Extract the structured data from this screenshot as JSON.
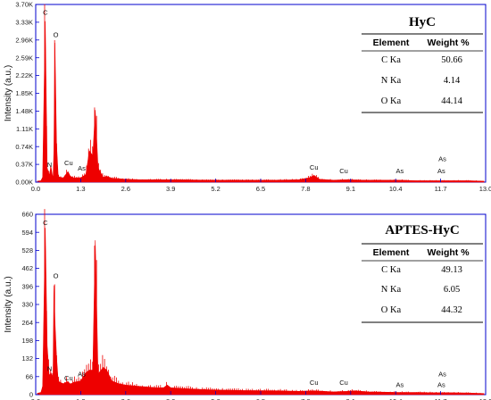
{
  "colors": {
    "spectrum": "#ee0000",
    "frame": "#0000cc",
    "text": "#111111"
  },
  "chart_data": [
    {
      "type": "area",
      "ylabel": "Intensity (a.u.)",
      "xlim": [
        0,
        13
      ],
      "ylim": [
        0,
        3.7
      ],
      "y_unit": "K",
      "xticks": [
        "0.0",
        "1.3",
        "2.6",
        "3.9",
        "5.2",
        "6.5",
        "7.8",
        "9.1",
        "10.4",
        "11.7",
        "13.0"
      ],
      "yticks": [
        "0.00K",
        "0.37K",
        "0.74K",
        "1.11K",
        "1.48K",
        "1.85K",
        "2.22K",
        "2.59K",
        "2.96K",
        "3.33K",
        "3.70K"
      ],
      "x": [
        0.05,
        0.15,
        0.2,
        0.277,
        0.33,
        0.39,
        0.44,
        0.5,
        0.525,
        0.555,
        0.6,
        0.65,
        0.7,
        0.8,
        0.93,
        1.0,
        1.1,
        1.3,
        1.45,
        1.55,
        1.65,
        1.72,
        1.8,
        1.95,
        2.05,
        2.2,
        2.4,
        2.6,
        3.0,
        3.5,
        4.0,
        5.0,
        6.0,
        7.0,
        7.6,
        7.9,
        8.04,
        8.2,
        8.6,
        9.0,
        9.5,
        10.0,
        10.5,
        11.0,
        11.5,
        12.0,
        12.5,
        12.95
      ],
      "y": [
        0.02,
        0.03,
        0.1,
        3.35,
        0.3,
        0.14,
        0.32,
        0.06,
        0.65,
        2.9,
        0.8,
        0.12,
        0.1,
        0.09,
        0.22,
        0.12,
        0.09,
        0.09,
        0.16,
        0.65,
        0.55,
        1.5,
        0.3,
        0.1,
        0.12,
        0.08,
        0.07,
        0.06,
        0.05,
        0.05,
        0.05,
        0.04,
        0.04,
        0.04,
        0.05,
        0.09,
        0.14,
        0.06,
        0.04,
        0.05,
        0.04,
        0.04,
        0.04,
        0.03,
        0.03,
        0.03,
        0.03,
        0.02
      ],
      "peaks": [
        {
          "label": "C",
          "x": 0.28,
          "y": 3.45
        },
        {
          "label": "O",
          "x": 0.58,
          "y": 2.98
        },
        {
          "label": "N",
          "x": 0.4,
          "y": 0.28
        },
        {
          "label": "Cu",
          "x": 0.95,
          "y": 0.32
        },
        {
          "label": "As",
          "x": 1.33,
          "y": 0.2
        },
        {
          "label": "Cu",
          "x": 8.04,
          "y": 0.22
        },
        {
          "label": "Cu",
          "x": 8.9,
          "y": 0.15
        },
        {
          "label": "As",
          "x": 10.52,
          "y": 0.15
        },
        {
          "label": "As",
          "x": 11.72,
          "y": 0.15
        },
        {
          "label": "As",
          "x": 11.75,
          "y": 0.4
        }
      ],
      "table": {
        "title": "HyC",
        "headers": [
          "Element",
          "Weight %"
        ],
        "rows": [
          [
            "C Ka",
            "50.66"
          ],
          [
            "N Ka",
            "4.14"
          ],
          [
            "O Ka",
            "44.14"
          ]
        ]
      }
    },
    {
      "type": "area",
      "ylabel": "Intensity (a.u.)",
      "xlim": [
        0,
        13
      ],
      "ylim": [
        0,
        660
      ],
      "xticks": [
        "0.0",
        "1.3",
        "2.6",
        "3.9",
        "5.2",
        "6.5",
        "7.8",
        "9.1",
        "10.4",
        "11.7",
        "13.0"
      ],
      "yticks": [
        "0",
        "66",
        "132",
        "198",
        "264",
        "330",
        "396",
        "462",
        "528",
        "594",
        "660"
      ],
      "x": [
        0.05,
        0.15,
        0.2,
        0.277,
        0.33,
        0.39,
        0.44,
        0.5,
        0.525,
        0.555,
        0.6,
        0.65,
        0.7,
        0.8,
        0.93,
        1.0,
        1.1,
        1.3,
        1.45,
        1.55,
        1.65,
        1.72,
        1.8,
        1.95,
        2.05,
        2.2,
        2.4,
        2.6,
        3.0,
        3.5,
        3.7,
        3.8,
        3.9,
        4.3,
        5.0,
        6.0,
        7.0,
        7.6,
        8.04,
        8.6,
        9.0,
        9.2,
        9.6,
        10.0,
        10.5,
        11.0,
        11.5,
        12.0,
        12.5,
        12.95
      ],
      "y": [
        5,
        8,
        30,
        610,
        180,
        70,
        80,
        60,
        400,
        270,
        140,
        50,
        45,
        40,
        48,
        38,
        45,
        50,
        80,
        90,
        90,
        565,
        75,
        100,
        90,
        50,
        40,
        35,
        30,
        25,
        25,
        35,
        25,
        22,
        18,
        15,
        14,
        12,
        14,
        10,
        12,
        14,
        10,
        9,
        8,
        8,
        7,
        7,
        6,
        4
      ],
      "peaks": [
        {
          "label": "C",
          "x": 0.28,
          "y": 615
        },
        {
          "label": "O",
          "x": 0.58,
          "y": 420
        },
        {
          "label": "N",
          "x": 0.4,
          "y": 80
        },
        {
          "label": "Cu",
          "x": 0.95,
          "y": 45
        },
        {
          "label": "As",
          "x": 1.33,
          "y": 60
        },
        {
          "label": "Cu",
          "x": 8.04,
          "y": 30
        },
        {
          "label": "Cu",
          "x": 8.9,
          "y": 30
        },
        {
          "label": "As",
          "x": 10.52,
          "y": 22
        },
        {
          "label": "As",
          "x": 11.72,
          "y": 22
        },
        {
          "label": "As",
          "x": 11.75,
          "y": 60
        }
      ],
      "table": {
        "title": "APTES-HyC",
        "headers": [
          "Element",
          "Weight %"
        ],
        "rows": [
          [
            "C Ka",
            "49.13"
          ],
          [
            "N Ka",
            "6.05"
          ],
          [
            "O Ka",
            "44.32"
          ]
        ]
      }
    }
  ]
}
